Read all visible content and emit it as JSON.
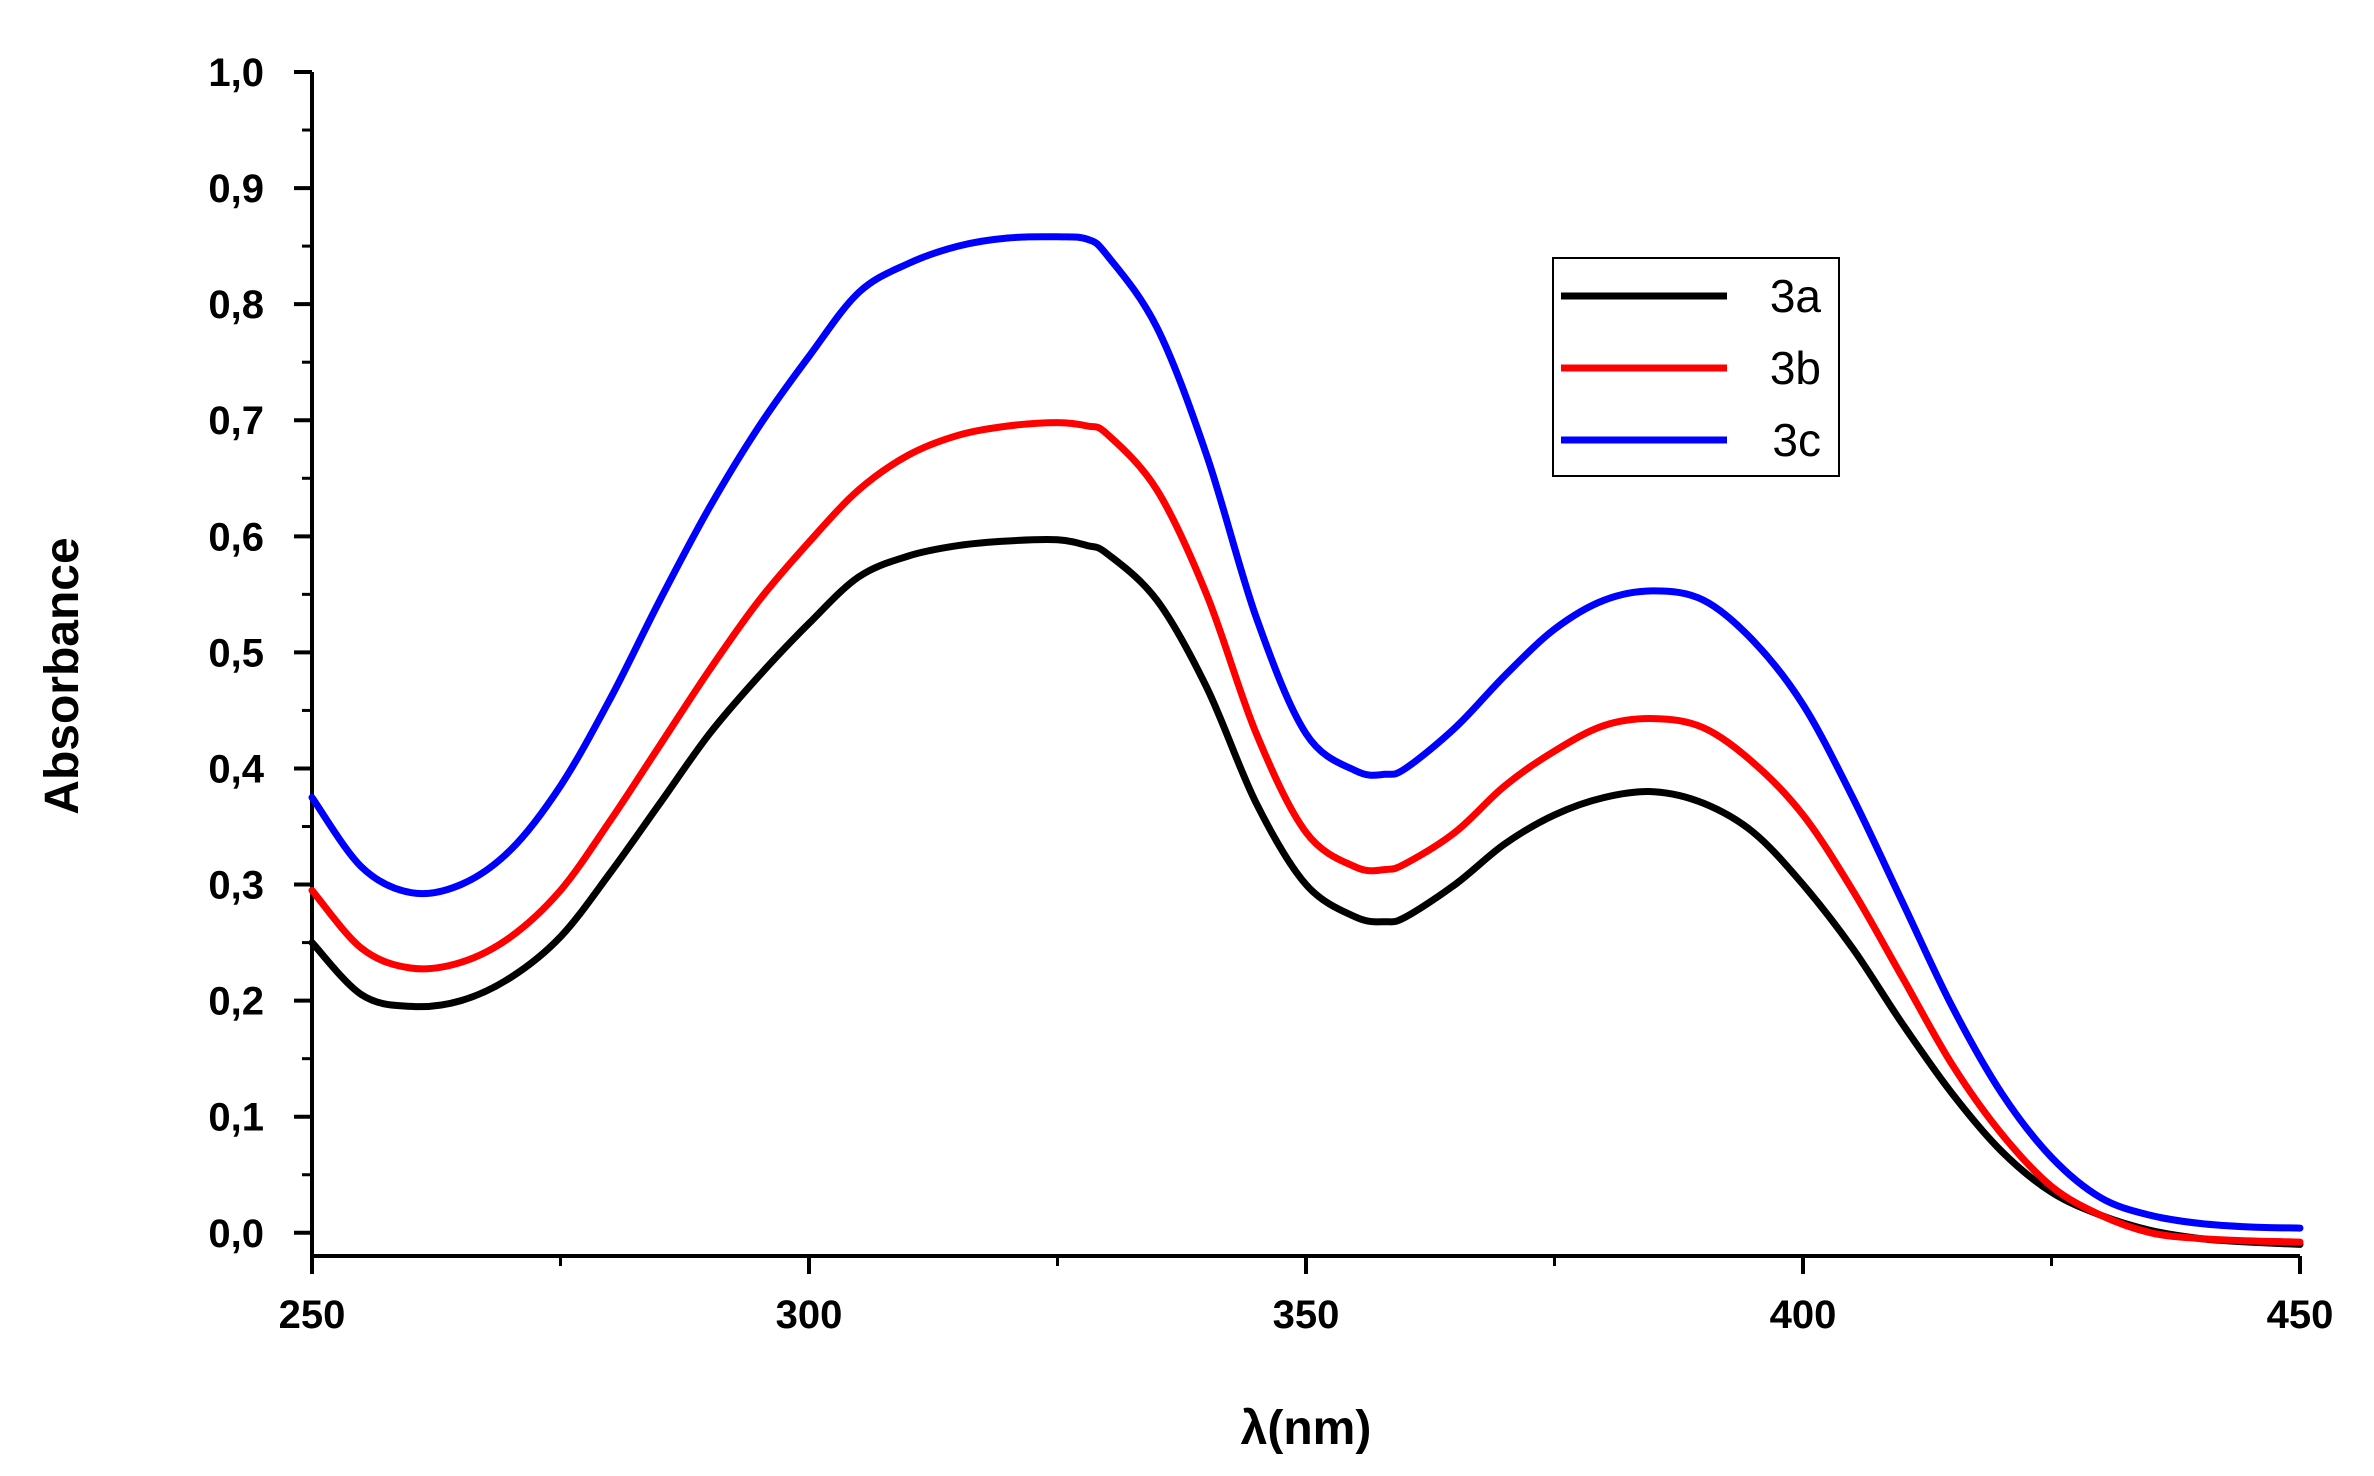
{
  "chart_data": {
    "type": "line",
    "title": "",
    "xlabel": "λ(nm)",
    "ylabel": "Absorbance",
    "xlim": [
      250,
      450
    ],
    "ylim": [
      0.0,
      1.0
    ],
    "x_ticks": [
      250,
      300,
      350,
      400,
      450
    ],
    "x_tick_labels": [
      "250",
      "300",
      "350",
      "400",
      "450"
    ],
    "y_ticks": [
      0.0,
      0.1,
      0.2,
      0.3,
      0.4,
      0.5,
      0.6,
      0.7,
      0.8,
      0.9,
      1.0
    ],
    "y_tick_labels": [
      "0,0",
      "0,1",
      "0,2",
      "0,3",
      "0,4",
      "0,5",
      "0,6",
      "0,7",
      "0,8",
      "0,9",
      "1,0"
    ],
    "grid": false,
    "legend_position": "upper-right",
    "x": [
      250,
      255,
      260,
      265,
      270,
      275,
      280,
      285,
      290,
      295,
      300,
      305,
      310,
      315,
      320,
      325,
      328,
      330,
      335,
      340,
      345,
      350,
      355,
      358,
      360,
      365,
      370,
      375,
      380,
      385,
      390,
      395,
      400,
      405,
      410,
      415,
      420,
      425,
      430,
      435,
      440,
      445,
      450
    ],
    "series": [
      {
        "name": "3a",
        "color": "#000000",
        "values": [
          0.25,
          0.205,
          0.195,
          0.2,
          0.22,
          0.255,
          0.31,
          0.37,
          0.43,
          0.48,
          0.525,
          0.565,
          0.583,
          0.592,
          0.596,
          0.597,
          0.592,
          0.585,
          0.545,
          0.47,
          0.37,
          0.3,
          0.272,
          0.268,
          0.272,
          0.3,
          0.335,
          0.36,
          0.375,
          0.38,
          0.37,
          0.345,
          0.3,
          0.245,
          0.18,
          0.12,
          0.07,
          0.035,
          0.015,
          0.002,
          -0.005,
          -0.008,
          -0.01
        ]
      },
      {
        "name": "3b",
        "color": "#ff0000",
        "values": [
          0.295,
          0.245,
          0.228,
          0.233,
          0.255,
          0.295,
          0.355,
          0.42,
          0.485,
          0.545,
          0.595,
          0.64,
          0.67,
          0.687,
          0.695,
          0.698,
          0.695,
          0.688,
          0.64,
          0.55,
          0.43,
          0.345,
          0.315,
          0.313,
          0.318,
          0.345,
          0.385,
          0.415,
          0.437,
          0.443,
          0.435,
          0.405,
          0.36,
          0.295,
          0.22,
          0.145,
          0.085,
          0.04,
          0.015,
          0.0,
          -0.005,
          -0.007,
          -0.008
        ]
      },
      {
        "name": "3c",
        "color": "#0000ff",
        "values": [
          0.375,
          0.315,
          0.293,
          0.3,
          0.33,
          0.385,
          0.46,
          0.545,
          0.625,
          0.695,
          0.755,
          0.81,
          0.835,
          0.85,
          0.857,
          0.858,
          0.856,
          0.842,
          0.78,
          0.67,
          0.53,
          0.43,
          0.398,
          0.395,
          0.4,
          0.435,
          0.48,
          0.52,
          0.545,
          0.553,
          0.545,
          0.51,
          0.455,
          0.375,
          0.285,
          0.195,
          0.12,
          0.065,
          0.03,
          0.015,
          0.008,
          0.005,
          0.004
        ]
      }
    ]
  }
}
